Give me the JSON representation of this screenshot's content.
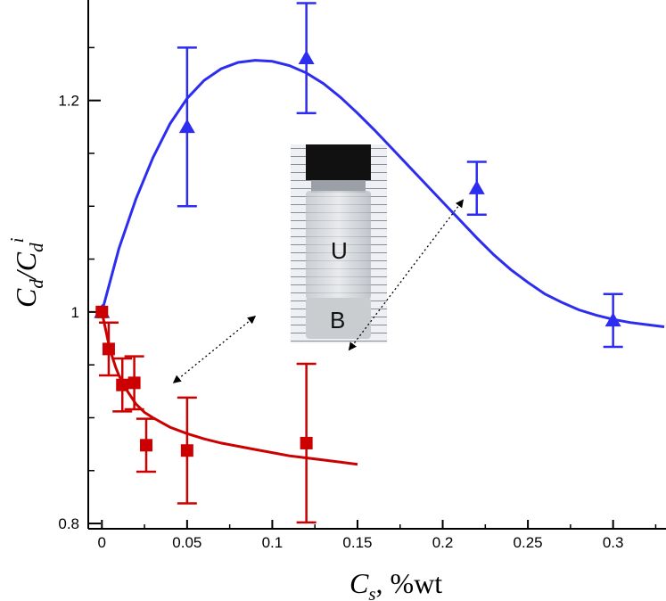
{
  "chart_data": {
    "type": "scatter",
    "title": "",
    "xlabel": {
      "main": "C",
      "sub": "s",
      "rest": ", %wt"
    },
    "ylabel": {
      "main": "C",
      "sub": "d",
      "sep": "/",
      "main2": "C",
      "sub2": "d",
      "sup2": "i"
    },
    "xlim": [
      -0.008,
      0.33
    ],
    "ylim": [
      0.795,
      1.295
    ],
    "x_ticks": [
      0,
      0.05,
      0.1,
      0.15,
      0.2,
      0.25,
      0.3
    ],
    "x_tick_labels": [
      "0",
      "0.05",
      "0.1",
      "0.15",
      "0.2",
      "0.25",
      "0.3"
    ],
    "y_ticks": [
      0.8,
      1.0,
      1.2
    ],
    "y_tick_labels": [
      "0.8",
      "1",
      "1.2"
    ],
    "grid": false,
    "series": [
      {
        "marker": "triangle",
        "color": "#2d2df0",
        "x": [
          0,
          0.05,
          0.12,
          0.22,
          0.3
        ],
        "y": [
          1.0,
          1.175,
          1.24,
          1.117,
          0.992
        ],
        "err_low": [
          0.0,
          0.075,
          0.052,
          0.025,
          0.025
        ],
        "err_high": [
          0.0,
          0.075,
          0.052,
          0.025,
          0.025
        ]
      },
      {
        "marker": "square",
        "color": "#cc0000",
        "x": [
          0,
          0.004,
          0.012,
          0.019,
          0.026,
          0.05,
          0.12
        ],
        "y": [
          1.0,
          0.965,
          0.931,
          0.933,
          0.874,
          0.869,
          0.876
        ],
        "err_low": [
          0.0,
          0.025,
          0.025,
          0.025,
          0.025,
          0.05,
          0.075
        ],
        "err_high": [
          0.0,
          0.025,
          0.025,
          0.025,
          0.025,
          0.05,
          0.075
        ]
      }
    ],
    "fits": [
      {
        "color": "#2d2df0",
        "x": [
          0,
          0.01,
          0.02,
          0.03,
          0.04,
          0.05,
          0.06,
          0.07,
          0.08,
          0.09,
          0.1,
          0.11,
          0.12,
          0.13,
          0.14,
          0.15,
          0.16,
          0.17,
          0.18,
          0.19,
          0.2,
          0.21,
          0.22,
          0.23,
          0.24,
          0.25,
          0.26,
          0.27,
          0.28,
          0.29,
          0.3,
          0.31,
          0.32,
          0.33
        ],
        "y": [
          1.0,
          1.06,
          1.107,
          1.146,
          1.178,
          1.202,
          1.219,
          1.23,
          1.236,
          1.238,
          1.237,
          1.233,
          1.226,
          1.216,
          1.203,
          1.188,
          1.172,
          1.155,
          1.138,
          1.121,
          1.104,
          1.087,
          1.07,
          1.054,
          1.04,
          1.028,
          1.017,
          1.009,
          1.002,
          0.997,
          0.993,
          0.99,
          0.988,
          0.986
        ]
      },
      {
        "color": "#cc0000",
        "x": [
          0,
          0.002,
          0.004,
          0.006,
          0.008,
          0.01,
          0.015,
          0.02,
          0.025,
          0.03,
          0.04,
          0.05,
          0.06,
          0.07,
          0.08,
          0.09,
          0.1,
          0.11,
          0.12,
          0.13,
          0.14,
          0.15
        ],
        "y": [
          1.0,
          0.985,
          0.97,
          0.958,
          0.948,
          0.94,
          0.925,
          0.913,
          0.905,
          0.9,
          0.891,
          0.885,
          0.88,
          0.876,
          0.873,
          0.87,
          0.867,
          0.864,
          0.862,
          0.86,
          0.858,
          0.856
        ]
      }
    ],
    "annotations": [
      {
        "from": [
          0.09,
          0.996
        ],
        "to": [
          0.042,
          0.933
        ],
        "style": "dotted-double-arrow"
      },
      {
        "from": [
          0.145,
          0.964
        ],
        "to": [
          0.212,
          1.106
        ],
        "style": "dotted-double-arrow"
      }
    ],
    "inset": {
      "label_upper": "U",
      "label_lower": "B"
    }
  }
}
